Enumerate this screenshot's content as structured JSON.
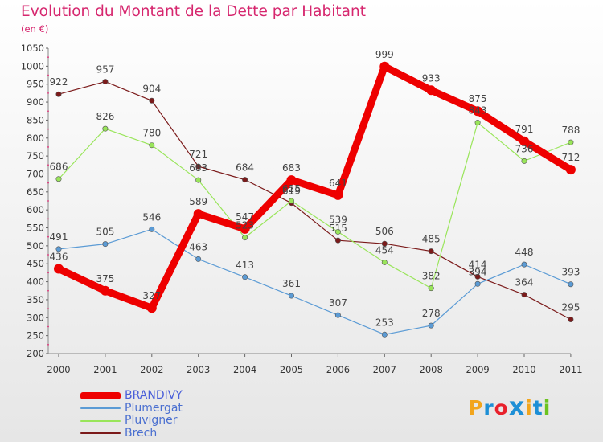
{
  "title": "Evolution du Montant de la Dette par Habitant",
  "subtitle": "(en €)",
  "logo": {
    "text": "Proxiti",
    "colors": [
      "#f2a51d",
      "#1d8fd6",
      "#e8212c",
      "#1d8fd6",
      "#f2a51d",
      "#1d8fd6",
      "#6cc31f"
    ]
  },
  "chart_data": {
    "type": "line",
    "x": [
      "2000",
      "2001",
      "2002",
      "2003",
      "2004",
      "2005",
      "2006",
      "2007",
      "2008",
      "2009",
      "2010",
      "2011"
    ],
    "ylim": [
      200,
      1050
    ],
    "yticks": [
      200,
      250,
      300,
      350,
      400,
      450,
      500,
      550,
      600,
      650,
      700,
      750,
      800,
      850,
      900,
      950,
      1000,
      1050
    ],
    "grid": false,
    "legend_position": "bottom-left",
    "series": [
      {
        "name": "BRANDIVY",
        "color": "#ee0000",
        "values": [
          436,
          375,
          327,
          589,
          547,
          683,
          641,
          999,
          933,
          875,
          791,
          712
        ]
      },
      {
        "name": "Plumergat",
        "color": "#5b9bd5",
        "values": [
          491,
          505,
          546,
          463,
          413,
          361,
          307,
          253,
          278,
          394,
          448,
          393
        ]
      },
      {
        "name": "Pluvigner",
        "color": "#99e55a",
        "values": [
          686,
          826,
          780,
          683,
          523,
          625,
          539,
          454,
          382,
          843,
          736,
          788
        ]
      },
      {
        "name": "Brech",
        "color": "#7b1a1a",
        "values": [
          922,
          957,
          904,
          721,
          684,
          619,
          515,
          506,
          485,
          414,
          364,
          295
        ]
      }
    ]
  }
}
